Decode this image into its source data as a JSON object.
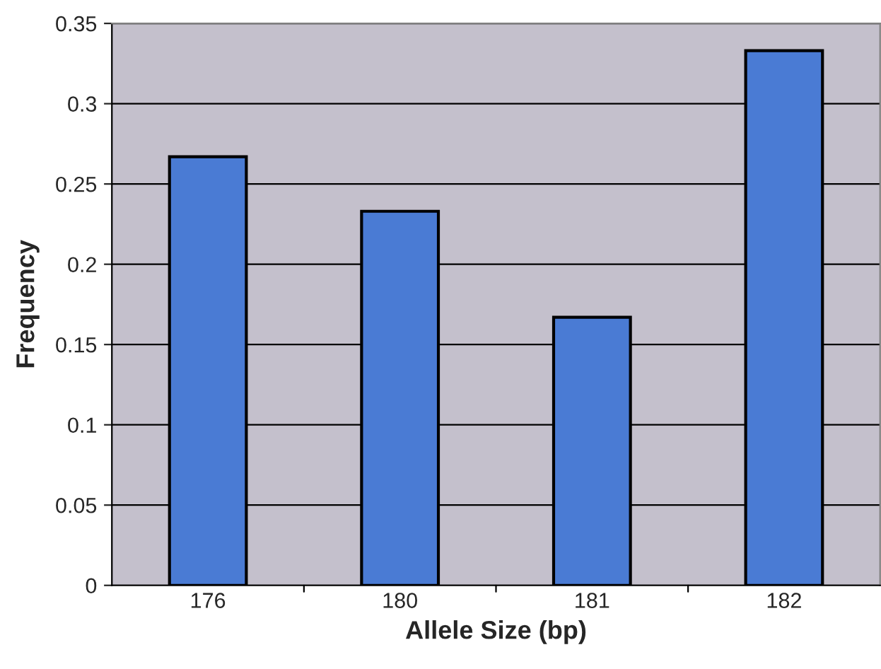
{
  "chart_data": {
    "type": "bar",
    "xlabel": "Allele Size (bp)",
    "ylabel": "Frequency",
    "categories": [
      "176",
      "180",
      "181",
      "182"
    ],
    "values": [
      0.267,
      0.233,
      0.167,
      0.333
    ],
    "color": "#4a7bd4",
    "ylim": [
      0,
      0.35
    ],
    "yticks": [
      0,
      {
        "value": 0.05,
        "label": "0.05"
      },
      {
        "value": 0.1,
        "label": "0.1"
      },
      {
        "value": 0.15,
        "label": "0.15"
      },
      {
        "value": 0.2,
        "label": "0.2"
      },
      {
        "value": 0.25,
        "label": "0.25"
      },
      {
        "value": 0.3,
        "label": "0.3"
      },
      {
        "value": 0.35,
        "label": "0.35"
      }
    ],
    "grid": "y"
  }
}
